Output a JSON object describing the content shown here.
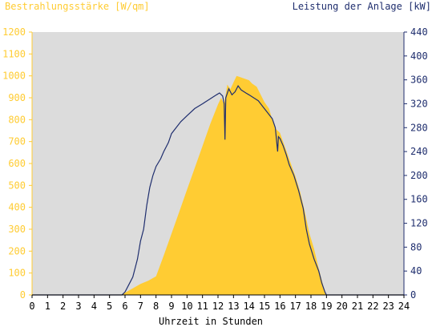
{
  "chart_data": {
    "type": "area",
    "left_axis_title": "Bestrahlungsstärke [W/qm]",
    "right_axis_title": "Leistung der Anlage [kW]",
    "xlabel": "Uhrzeit in Stunden",
    "x_range": [
      0,
      24
    ],
    "x_ticks": [
      "0",
      "1",
      "2",
      "3",
      "4",
      "5",
      "6",
      "7",
      "8",
      "9",
      "10",
      "11",
      "12",
      "13",
      "14",
      "15",
      "16",
      "17",
      "18",
      "19",
      "20",
      "21",
      "22",
      "23",
      "24"
    ],
    "left_ylim": [
      0,
      1200
    ],
    "left_ticks": [
      "0",
      "100",
      "200",
      "300",
      "400",
      "500",
      "600",
      "700",
      "800",
      "900",
      "1000",
      "1100",
      "1200"
    ],
    "right_ylim": [
      0,
      440
    ],
    "right_ticks": [
      "0",
      "40",
      "80",
      "120",
      "160",
      "200",
      "240",
      "280",
      "320",
      "360",
      "400",
      "440"
    ],
    "grid": false,
    "colors": {
      "plot_background": "#dcdcdc",
      "irradiance": "#ffcc33",
      "power": "#1f2e6e",
      "left_axis_text": "#ffcc33",
      "right_axis_text": "#1f2e6e",
      "x_axis_text": "#000000"
    },
    "series": [
      {
        "axis": "left",
        "style": "area",
        "points": [
          [
            0,
            0
          ],
          [
            5.8,
            0
          ],
          [
            6.0,
            10
          ],
          [
            6.5,
            30
          ],
          [
            7.0,
            50
          ],
          [
            7.5,
            65
          ],
          [
            8.0,
            85
          ],
          [
            8.5,
            180
          ],
          [
            9.0,
            280
          ],
          [
            9.5,
            380
          ],
          [
            10.0,
            480
          ],
          [
            10.5,
            580
          ],
          [
            11.0,
            680
          ],
          [
            11.5,
            780
          ],
          [
            12.0,
            870
          ],
          [
            12.2,
            900
          ],
          [
            12.4,
            870
          ],
          [
            12.6,
            960
          ],
          [
            12.8,
            940
          ],
          [
            13.0,
            970
          ],
          [
            13.2,
            1000
          ],
          [
            13.4,
            995
          ],
          [
            13.6,
            990
          ],
          [
            13.8,
            985
          ],
          [
            14.0,
            980
          ],
          [
            14.2,
            965
          ],
          [
            14.5,
            950
          ],
          [
            15.0,
            880
          ],
          [
            15.3,
            850
          ],
          [
            15.5,
            800
          ],
          [
            15.7,
            760
          ],
          [
            16.0,
            740
          ],
          [
            16.3,
            680
          ],
          [
            16.6,
            620
          ],
          [
            17.0,
            540
          ],
          [
            17.3,
            470
          ],
          [
            17.6,
            380
          ],
          [
            17.9,
            280
          ],
          [
            18.2,
            210
          ],
          [
            18.5,
            120
          ],
          [
            18.8,
            40
          ],
          [
            19.0,
            0
          ],
          [
            24,
            0
          ]
        ]
      },
      {
        "axis": "right",
        "style": "line",
        "points": [
          [
            0,
            0
          ],
          [
            5.8,
            0
          ],
          [
            6.0,
            5
          ],
          [
            6.2,
            15
          ],
          [
            6.5,
            30
          ],
          [
            6.8,
            60
          ],
          [
            7.0,
            90
          ],
          [
            7.2,
            110
          ],
          [
            7.4,
            150
          ],
          [
            7.6,
            180
          ],
          [
            7.8,
            200
          ],
          [
            8.0,
            215
          ],
          [
            8.3,
            228
          ],
          [
            8.5,
            240
          ],
          [
            8.8,
            255
          ],
          [
            9.0,
            270
          ],
          [
            9.3,
            280
          ],
          [
            9.6,
            290
          ],
          [
            10.0,
            300
          ],
          [
            10.5,
            312
          ],
          [
            11.0,
            320
          ],
          [
            11.3,
            325
          ],
          [
            11.6,
            330
          ],
          [
            11.9,
            335
          ],
          [
            12.1,
            338
          ],
          [
            12.3,
            333
          ],
          [
            12.4,
            320
          ],
          [
            12.45,
            260
          ],
          [
            12.5,
            330
          ],
          [
            12.7,
            345
          ],
          [
            12.9,
            335
          ],
          [
            13.1,
            340
          ],
          [
            13.3,
            350
          ],
          [
            13.5,
            343
          ],
          [
            13.8,
            338
          ],
          [
            14.0,
            335
          ],
          [
            14.3,
            330
          ],
          [
            14.6,
            325
          ],
          [
            14.9,
            315
          ],
          [
            15.2,
            305
          ],
          [
            15.5,
            295
          ],
          [
            15.7,
            280
          ],
          [
            15.85,
            240
          ],
          [
            15.9,
            265
          ],
          [
            16.0,
            262
          ],
          [
            16.2,
            250
          ],
          [
            16.4,
            235
          ],
          [
            16.6,
            218
          ],
          [
            16.9,
            200
          ],
          [
            17.2,
            175
          ],
          [
            17.5,
            145
          ],
          [
            17.7,
            110
          ],
          [
            17.9,
            85
          ],
          [
            18.2,
            60
          ],
          [
            18.5,
            40
          ],
          [
            18.7,
            20
          ],
          [
            18.9,
            5
          ],
          [
            19.0,
            0
          ],
          [
            24,
            0
          ]
        ]
      }
    ]
  }
}
